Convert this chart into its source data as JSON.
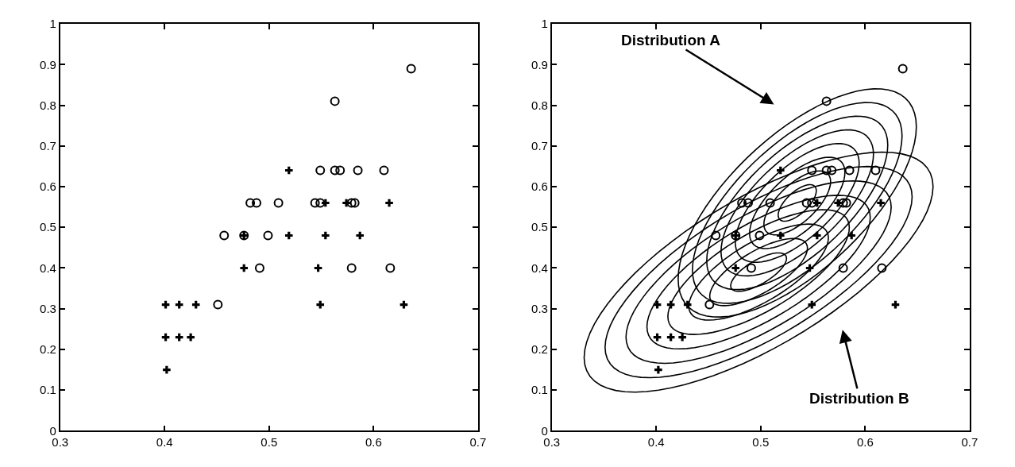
{
  "chart_data": [
    {
      "type": "scatter",
      "xlim": [
        0.3,
        0.7
      ],
      "ylim": [
        0,
        1
      ],
      "xticks": [
        0.3,
        0.4,
        0.5,
        0.6,
        0.7
      ],
      "yticks": [
        0,
        0.1,
        0.2,
        0.3,
        0.4,
        0.5,
        0.6,
        0.7,
        0.8,
        0.9,
        1
      ],
      "grid": false,
      "series": [
        {
          "marker": "circle",
          "color": "#000000",
          "x": [
            0.636,
            0.563,
            0.549,
            0.563,
            0.568,
            0.585,
            0.61,
            0.482,
            0.488,
            0.509,
            0.544,
            0.549,
            0.579,
            0.582,
            0.457,
            0.476,
            0.499,
            0.491,
            0.579,
            0.616,
            0.451
          ],
          "values": [
            0.89,
            0.81,
            0.64,
            0.64,
            0.64,
            0.64,
            0.64,
            0.56,
            0.56,
            0.56,
            0.56,
            0.56,
            0.56,
            0.56,
            0.48,
            0.48,
            0.48,
            0.4,
            0.4,
            0.4,
            0.31
          ]
        },
        {
          "marker": "cross",
          "color": "#000000",
          "x": [
            0.519,
            0.554,
            0.574,
            0.615,
            0.476,
            0.519,
            0.554,
            0.587,
            0.476,
            0.547,
            0.401,
            0.414,
            0.43,
            0.549,
            0.629,
            0.401,
            0.414,
            0.425,
            0.402
          ],
          "values": [
            0.64,
            0.56,
            0.56,
            0.56,
            0.48,
            0.48,
            0.48,
            0.48,
            0.4,
            0.4,
            0.31,
            0.31,
            0.31,
            0.31,
            0.31,
            0.23,
            0.23,
            0.23,
            0.15
          ]
        }
      ]
    },
    {
      "type": "scatter",
      "xlim": [
        0.3,
        0.7
      ],
      "ylim": [
        0,
        1
      ],
      "xticks": [
        0.3,
        0.4,
        0.5,
        0.6,
        0.7
      ],
      "yticks": [
        0,
        0.1,
        0.2,
        0.3,
        0.4,
        0.5,
        0.6,
        0.7,
        0.8,
        0.9,
        1
      ],
      "grid": false,
      "annotations": [
        "Distribution A",
        "Distribution B"
      ],
      "series": [
        {
          "marker": "circle",
          "color": "#000000",
          "x": [
            0.636,
            0.563,
            0.549,
            0.563,
            0.568,
            0.585,
            0.61,
            0.482,
            0.488,
            0.509,
            0.544,
            0.549,
            0.579,
            0.582,
            0.457,
            0.476,
            0.499,
            0.491,
            0.579,
            0.616,
            0.451
          ],
          "values": [
            0.89,
            0.81,
            0.64,
            0.64,
            0.64,
            0.64,
            0.64,
            0.56,
            0.56,
            0.56,
            0.56,
            0.56,
            0.56,
            0.56,
            0.48,
            0.48,
            0.48,
            0.4,
            0.4,
            0.4,
            0.31
          ]
        },
        {
          "marker": "cross",
          "color": "#000000",
          "x": [
            0.519,
            0.554,
            0.574,
            0.615,
            0.476,
            0.519,
            0.554,
            0.587,
            0.476,
            0.547,
            0.401,
            0.414,
            0.43,
            0.549,
            0.629,
            0.401,
            0.414,
            0.425,
            0.402
          ],
          "values": [
            0.64,
            0.56,
            0.56,
            0.56,
            0.48,
            0.48,
            0.48,
            0.48,
            0.4,
            0.4,
            0.31,
            0.31,
            0.31,
            0.31,
            0.31,
            0.23,
            0.23,
            0.23,
            0.15
          ]
        }
      ]
    }
  ]
}
